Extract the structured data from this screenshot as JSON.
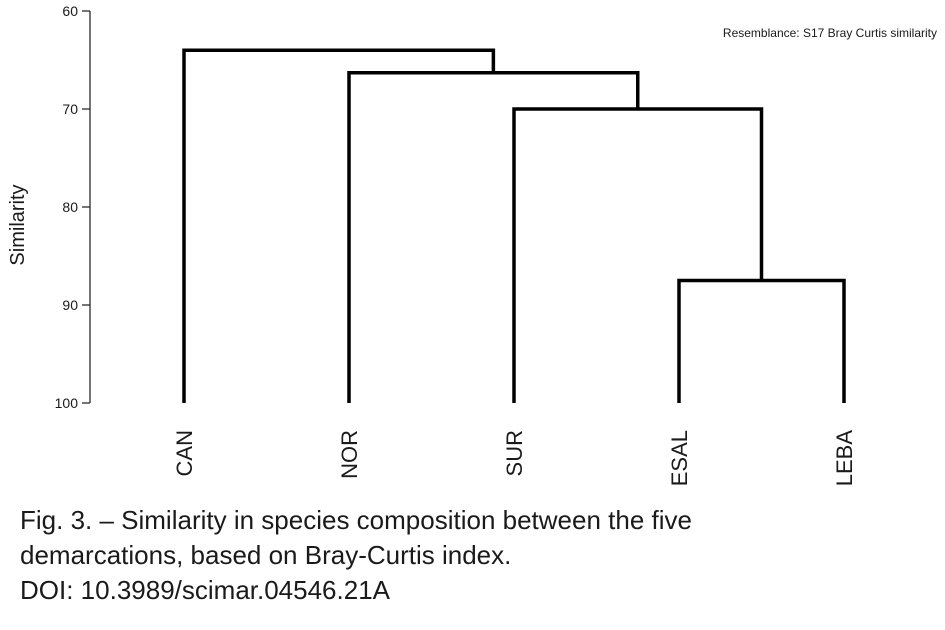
{
  "chart_data": {
    "type": "dendrogram",
    "annotation": "Resemblance: S17 Bray Curtis similarity",
    "ylabel": "Similarity",
    "ylim": [
      60,
      100
    ],
    "yticks": [
      60,
      70,
      80,
      90,
      100
    ],
    "leaves": [
      "CAN",
      "NOR",
      "SUR",
      "ESAL",
      "LEBA"
    ],
    "merges": [
      {
        "left": "ESAL",
        "right": "LEBA",
        "similarity": 87.5
      },
      {
        "left": "SUR",
        "right": "ESAL+LEBA",
        "similarity": 70.0
      },
      {
        "left": "NOR",
        "right": "SUR+ESAL+LEBA",
        "similarity": 66.3
      },
      {
        "left": "CAN",
        "right": "NOR+SUR+ESAL+LEBA",
        "similarity": 64.0
      }
    ]
  },
  "caption": {
    "lines": [
      "Fig. 3. – Similarity in species composition between the five",
      "demarcations, based on Bray-Curtis index.",
      "DOI: 10.3989/scimar.04546.21A"
    ]
  }
}
